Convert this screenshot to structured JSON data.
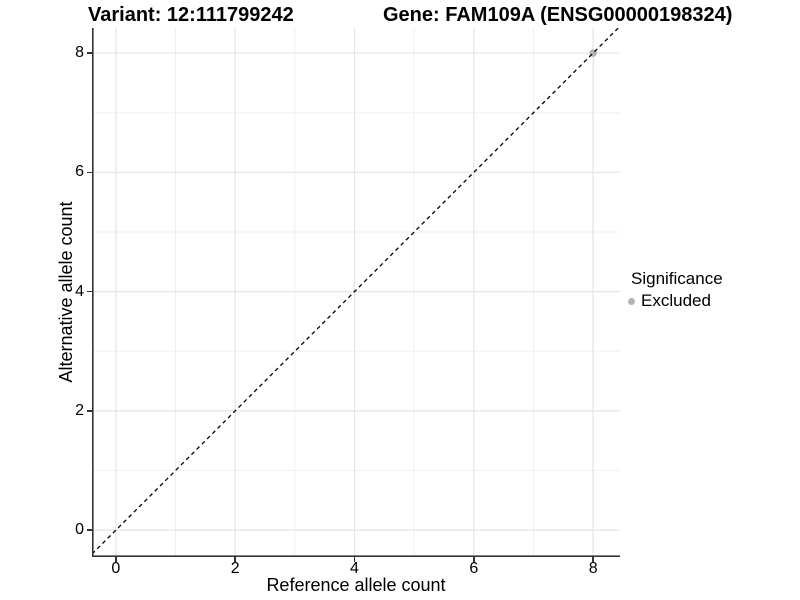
{
  "chart_data": {
    "type": "scatter",
    "title_left": "Variant: 12:111799242",
    "title_right": "Gene: FAM109A (ENSG00000198324)",
    "xlabel": "Reference allele count",
    "ylabel": "Alternative allele count",
    "xticks": [
      0,
      2,
      4,
      6,
      8
    ],
    "yticks": [
      0,
      2,
      4,
      6,
      8
    ],
    "minor_ticks": [
      1,
      3,
      5,
      7
    ],
    "xlim": [
      -0.4,
      8.45
    ],
    "ylim": [
      -0.45,
      8.42
    ],
    "grid": {
      "major": true,
      "minor": true
    },
    "legend": {
      "title": "Significance",
      "position": "right",
      "entries": [
        {
          "label": "Excluded",
          "color": "#b3b3b3"
        }
      ]
    },
    "series": [
      {
        "name": "Excluded",
        "color": "#b3b3b3",
        "points": [
          [
            8,
            8
          ]
        ]
      }
    ],
    "reference_line": {
      "type": "identity y=x",
      "style": "dashed",
      "color": "#000000"
    },
    "colors": {
      "background": "#ffffff",
      "grid_major": "#e4e4e4",
      "grid_minor": "#f0f0f0",
      "axis": "#333333",
      "point": "#b3b3b3",
      "dashed_line": "#000000"
    }
  }
}
